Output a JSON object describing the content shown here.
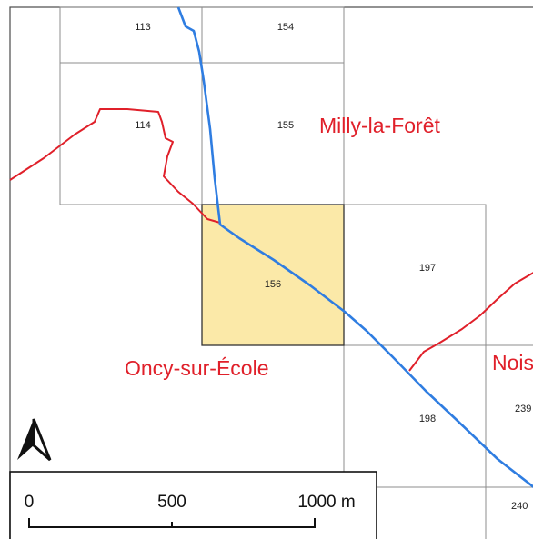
{
  "map": {
    "colors": {
      "background": "#ffffff",
      "frame": "#4a4a4a",
      "grid_line": "#8c8c8c",
      "highlight_fill": "#fbe9a8",
      "highlight_stroke": "#333333",
      "boundary": "#e0202a",
      "river": "#2f7de1",
      "label_text": "#222222"
    },
    "grid_cells": [
      {
        "id": "113",
        "label": "113",
        "highlighted": false
      },
      {
        "id": "154",
        "label": "154",
        "highlighted": false
      },
      {
        "id": "114",
        "label": "114",
        "highlighted": false
      },
      {
        "id": "155",
        "label": "155",
        "highlighted": false
      },
      {
        "id": "156",
        "label": "156",
        "highlighted": true
      },
      {
        "id": "197",
        "label": "197",
        "highlighted": false
      },
      {
        "id": "198",
        "label": "198",
        "highlighted": false
      },
      {
        "id": "239",
        "label": "239",
        "highlighted": false
      },
      {
        "id": "240",
        "label": "240",
        "highlighted": false
      }
    ],
    "communes": {
      "milly": "Milly-la-Forêt",
      "oncy": "Oncy-sur-École",
      "noisy": "Nois"
    },
    "north_arrow": {
      "icon": "north-arrow-icon"
    },
    "scale_bar": {
      "label_0": "0",
      "label_500": "500",
      "label_1000": "1000 m"
    }
  }
}
